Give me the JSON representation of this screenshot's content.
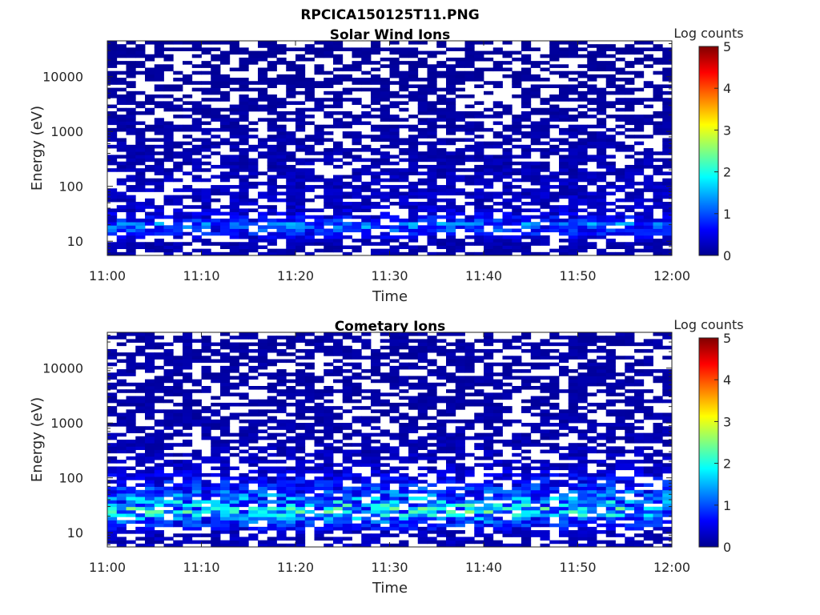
{
  "figure_title": "RPCICA150125T11.PNG",
  "colormap": [
    "#00008f",
    "#0000ff",
    "#0080ff",
    "#00ffff",
    "#80ff80",
    "#ffff00",
    "#ff8000",
    "#ff0000",
    "#800000"
  ],
  "chart_data": [
    {
      "type": "heatmap",
      "title": "Solar Wind Ions",
      "xlabel": "Time",
      "ylabel": "Energy (eV)",
      "x_ticks": [
        "11:00",
        "11:10",
        "11:20",
        "11:30",
        "11:40",
        "11:50",
        "12:00"
      ],
      "x_range": [
        "11:00",
        "12:00"
      ],
      "y_scale": "log",
      "y_ticks": [
        "10",
        "100",
        "1000",
        "10000"
      ],
      "y_range": [
        5.5,
        45000
      ],
      "colorbar": {
        "label": "Log counts",
        "range": [
          0,
          5
        ],
        "ticks": [
          "0",
          "1",
          "2",
          "3",
          "4",
          "5"
        ]
      },
      "approximate_profile": [
        {
          "energy_eV": 10,
          "log_counts": 0.3
        },
        {
          "energy_eV": 20,
          "log_counts": 1.8
        },
        {
          "energy_eV": 25,
          "log_counts": 1.0
        },
        {
          "energy_eV": 40,
          "log_counts": 0.5
        },
        {
          "energy_eV": 100,
          "log_counts": 0.4
        },
        {
          "energy_eV": 350,
          "log_counts": 0.3
        },
        {
          "energy_eV": 1500,
          "log_counts": 0.2
        },
        {
          "energy_eV": 10000,
          "log_counts": 0.1
        }
      ]
    },
    {
      "type": "heatmap",
      "title": "Cometary Ions",
      "xlabel": "Time",
      "ylabel": "Energy (eV)",
      "x_ticks": [
        "11:00",
        "11:10",
        "11:20",
        "11:30",
        "11:40",
        "11:50",
        "12:00"
      ],
      "x_range": [
        "11:00",
        "12:00"
      ],
      "y_scale": "log",
      "y_ticks": [
        "10",
        "100",
        "1000",
        "10000"
      ],
      "y_range": [
        5.5,
        45000
      ],
      "colorbar": {
        "label": "Log counts",
        "range": [
          0,
          5
        ],
        "ticks": [
          "0",
          "1",
          "2",
          "3",
          "4",
          "5"
        ]
      },
      "approximate_profile": [
        {
          "energy_eV": 10,
          "log_counts": 0.4
        },
        {
          "energy_eV": 16,
          "log_counts": 1.5
        },
        {
          "energy_eV": 25,
          "log_counts": 2.7
        },
        {
          "energy_eV": 40,
          "log_counts": 2.0
        },
        {
          "energy_eV": 70,
          "log_counts": 1.2
        },
        {
          "energy_eV": 150,
          "log_counts": 0.5
        },
        {
          "energy_eV": 500,
          "log_counts": 0.3
        },
        {
          "energy_eV": 2000,
          "log_counts": 0.2
        }
      ]
    }
  ]
}
